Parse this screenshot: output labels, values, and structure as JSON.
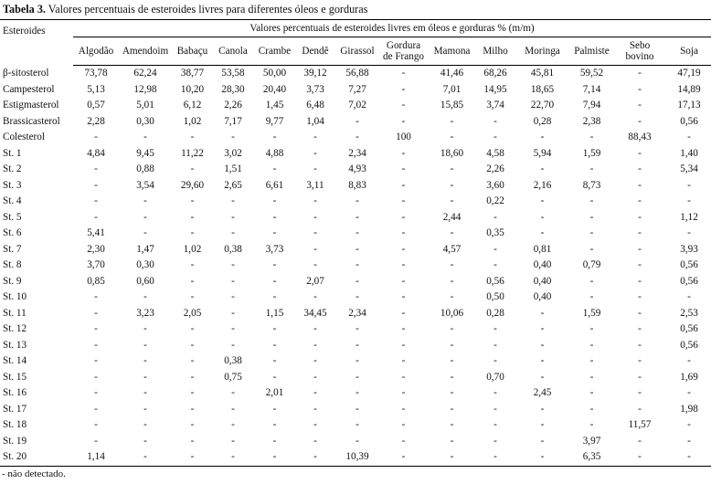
{
  "caption": {
    "label": "Tabela 3.",
    "text": " Valores percentuais de esteroides livres para diferentes óleos e gorduras"
  },
  "header": {
    "row_label": "Esteroides",
    "group": "Valores percentuais de esteroides livres em óleos e gorduras % (m/m)",
    "columns": [
      [
        "Algodão"
      ],
      [
        "Amendoim"
      ],
      [
        "Babaçu"
      ],
      [
        "Canola"
      ],
      [
        "Crambe"
      ],
      [
        "Dendê"
      ],
      [
        "Girassol"
      ],
      [
        "Gordura",
        "de Frango"
      ],
      [
        "Mamona"
      ],
      [
        "Milho"
      ],
      [
        "Moringa"
      ],
      [
        "Palmiste"
      ],
      [
        "Sebo",
        "bovino"
      ],
      [
        "Soja"
      ]
    ]
  },
  "rows": [
    {
      "name": "β-sitosterol",
      "values": [
        "73,78",
        "62,24",
        "38,77",
        "53,58",
        "50,00",
        "39,12",
        "56,88",
        "-",
        "41,46",
        "68,26",
        "45,81",
        "59,52",
        "-",
        "47,19"
      ]
    },
    {
      "name": "Campesterol",
      "values": [
        "5,13",
        "12,98",
        "10,20",
        "28,30",
        "20,40",
        "3,73",
        "7,27",
        "-",
        "7,01",
        "14,95",
        "18,65",
        "7,14",
        "-",
        "14,89"
      ]
    },
    {
      "name": "Estigmasterol",
      "values": [
        "0,57",
        "5,01",
        "6,12",
        "2,26",
        "1,45",
        "6,48",
        "7,02",
        "-",
        "15,85",
        "3,74",
        "22,70",
        "7,94",
        "-",
        "17,13"
      ]
    },
    {
      "name": "Brassicasterol",
      "values": [
        "2,28",
        "0,30",
        "1,02",
        "7,17",
        "9,77",
        "1,04",
        "-",
        "-",
        "-",
        "-",
        "0,28",
        "2,38",
        "-",
        "0,56"
      ]
    },
    {
      "name": "Colesterol",
      "values": [
        "-",
        "-",
        "-",
        "-",
        "-",
        "-",
        "-",
        "100",
        "-",
        "-",
        "-",
        "-",
        "88,43",
        "-"
      ]
    },
    {
      "name": "St. 1",
      "values": [
        "4,84",
        "9,45",
        "11,22",
        "3,02",
        "4,88",
        "-",
        "2,34",
        "-",
        "18,60",
        "4,58",
        "5,94",
        "1,59",
        "-",
        "1,40"
      ]
    },
    {
      "name": "St. 2",
      "values": [
        "-",
        "0,88",
        "-",
        "1,51",
        "-",
        "-",
        "4,93",
        "-",
        "-",
        "2,26",
        "-",
        "-",
        "-",
        "5,34"
      ]
    },
    {
      "name": "St. 3",
      "values": [
        "-",
        "3,54",
        "29,60",
        "2,65",
        "6,61",
        "3,11",
        "8,83",
        "-",
        "-",
        "3,60",
        "2,16",
        "8,73",
        "-",
        "-"
      ]
    },
    {
      "name": "St. 4",
      "values": [
        "-",
        "-",
        "-",
        "-",
        "-",
        "-",
        "-",
        "-",
        "-",
        "0,22",
        "-",
        "-",
        "-",
        "-"
      ]
    },
    {
      "name": "St. 5",
      "values": [
        "-",
        "-",
        "-",
        "-",
        "-",
        "-",
        "-",
        "-",
        "2,44",
        "-",
        "-",
        "-",
        "-",
        "1,12"
      ]
    },
    {
      "name": "St. 6",
      "values": [
        "5,41",
        "-",
        "-",
        "-",
        "-",
        "-",
        "-",
        "-",
        "-",
        "0,35",
        "-",
        "-",
        "-",
        "-"
      ]
    },
    {
      "name": "St. 7",
      "values": [
        "2,30",
        "1,47",
        "1,02",
        "0,38",
        "3,73",
        "-",
        "-",
        "-",
        "4,57",
        "-",
        "0,81",
        "-",
        "-",
        "3,93"
      ]
    },
    {
      "name": "St. 8",
      "values": [
        "3,70",
        "0,30",
        "-",
        "-",
        "-",
        "-",
        "-",
        "-",
        "-",
        "-",
        "0,40",
        "0,79",
        "-",
        "0,56"
      ]
    },
    {
      "name": "St. 9",
      "values": [
        "0,85",
        "0,60",
        "-",
        "-",
        "-",
        "2,07",
        "-",
        "-",
        "-",
        "0,56",
        "0,40",
        "-",
        "-",
        "0,56"
      ]
    },
    {
      "name": "St. 10",
      "values": [
        "-",
        "-",
        "-",
        "-",
        "-",
        "-",
        "-",
        "-",
        "-",
        "0,50",
        "0,40",
        "-",
        "-",
        "-"
      ]
    },
    {
      "name": "St. 11",
      "values": [
        "-",
        "3,23",
        "2,05",
        "-",
        "1,15",
        "34,45",
        "2,34",
        "-",
        "10,06",
        "0,28",
        "-",
        "1,59",
        "-",
        "2,53"
      ]
    },
    {
      "name": "St. 12",
      "values": [
        "-",
        "-",
        "-",
        "-",
        "-",
        "-",
        "-",
        "-",
        "-",
        "-",
        "-",
        "-",
        "-",
        "0,56"
      ]
    },
    {
      "name": "St. 13",
      "values": [
        "-",
        "-",
        "-",
        "-",
        "-",
        "-",
        "-",
        "-",
        "-",
        "-",
        "-",
        "-",
        "-",
        "0,56"
      ]
    },
    {
      "name": "St. 14",
      "values": [
        "-",
        "-",
        "-",
        "0,38",
        "-",
        "-",
        "-",
        "-",
        "-",
        "-",
        "-",
        "-",
        "-",
        "-"
      ]
    },
    {
      "name": "St. 15",
      "values": [
        "-",
        "-",
        "-",
        "0,75",
        "-",
        "-",
        "-",
        "-",
        "-",
        "0,70",
        "-",
        "-",
        "-",
        "1,69"
      ]
    },
    {
      "name": "St. 16",
      "values": [
        "-",
        "-",
        "-",
        "-",
        "2,01",
        "-",
        "-",
        "-",
        "-",
        "-",
        "2,45",
        "-",
        "-",
        "-"
      ]
    },
    {
      "name": "St. 17",
      "values": [
        "-",
        "-",
        "-",
        "-",
        "-",
        "-",
        "-",
        "-",
        "-",
        "-",
        "-",
        "-",
        "-",
        "1,98"
      ]
    },
    {
      "name": "St. 18",
      "values": [
        "-",
        "-",
        "-",
        "-",
        "-",
        "-",
        "-",
        "-",
        "-",
        "-",
        "-",
        "-",
        "11,57",
        "-"
      ]
    },
    {
      "name": "St. 19",
      "values": [
        "-",
        "-",
        "-",
        "-",
        "-",
        "-",
        "-",
        "-",
        "-",
        "-",
        "-",
        "3,97",
        "-",
        "-"
      ]
    },
    {
      "name": "St. 20",
      "values": [
        "1,14",
        "-",
        "-",
        "-",
        "-",
        "-",
        "10,39",
        "-",
        "-",
        "-",
        "-",
        "6,35",
        "-",
        "-"
      ]
    }
  ],
  "footnote": "- não detectado."
}
